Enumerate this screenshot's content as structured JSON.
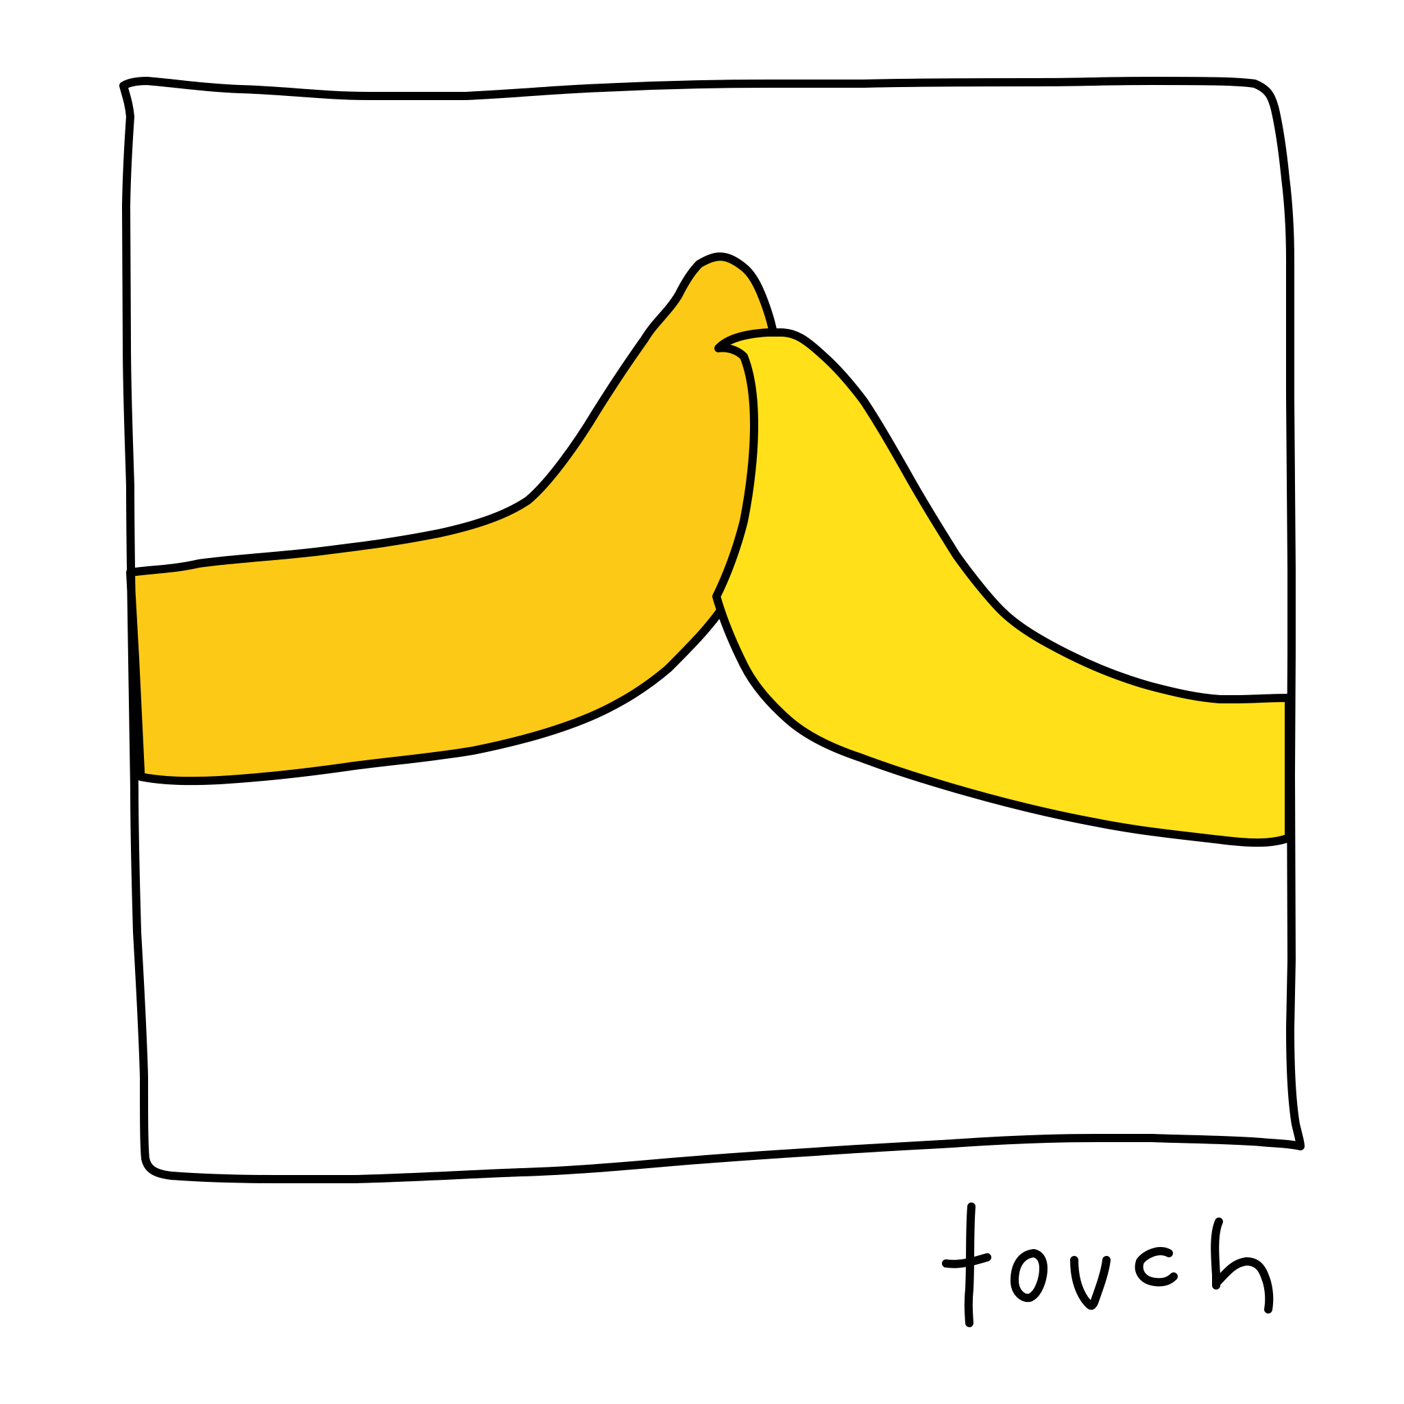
{
  "caption": {
    "text": "touch"
  },
  "colors": {
    "background": "#ffffff",
    "outline": "#000000",
    "left_shape_fill": "#fcc917",
    "right_shape_fill": "#ffe019"
  }
}
